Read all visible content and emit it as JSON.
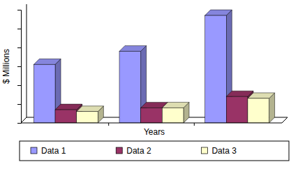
{
  "chart_data": {
    "type": "bar",
    "x_label": "Years",
    "y_label": "$ Millions",
    "categories": [
      null,
      null,
      null
    ],
    "series": [
      {
        "name": "Data 1",
        "color": "#9999ff",
        "values": [
          3.1,
          3.8,
          5.7
        ]
      },
      {
        "name": "Data 2",
        "color": "#993366",
        "values": [
          0.7,
          0.8,
          1.4
        ]
      },
      {
        "name": "Data 3",
        "color": "#ffffcc",
        "values": [
          0.6,
          0.8,
          1.3
        ]
      }
    ],
    "ylim": [
      0,
      6
    ],
    "yticks": [
      0,
      1,
      2,
      3,
      4,
      5,
      6
    ],
    "grid": false,
    "tick_labels": false,
    "legend": "bottom"
  }
}
